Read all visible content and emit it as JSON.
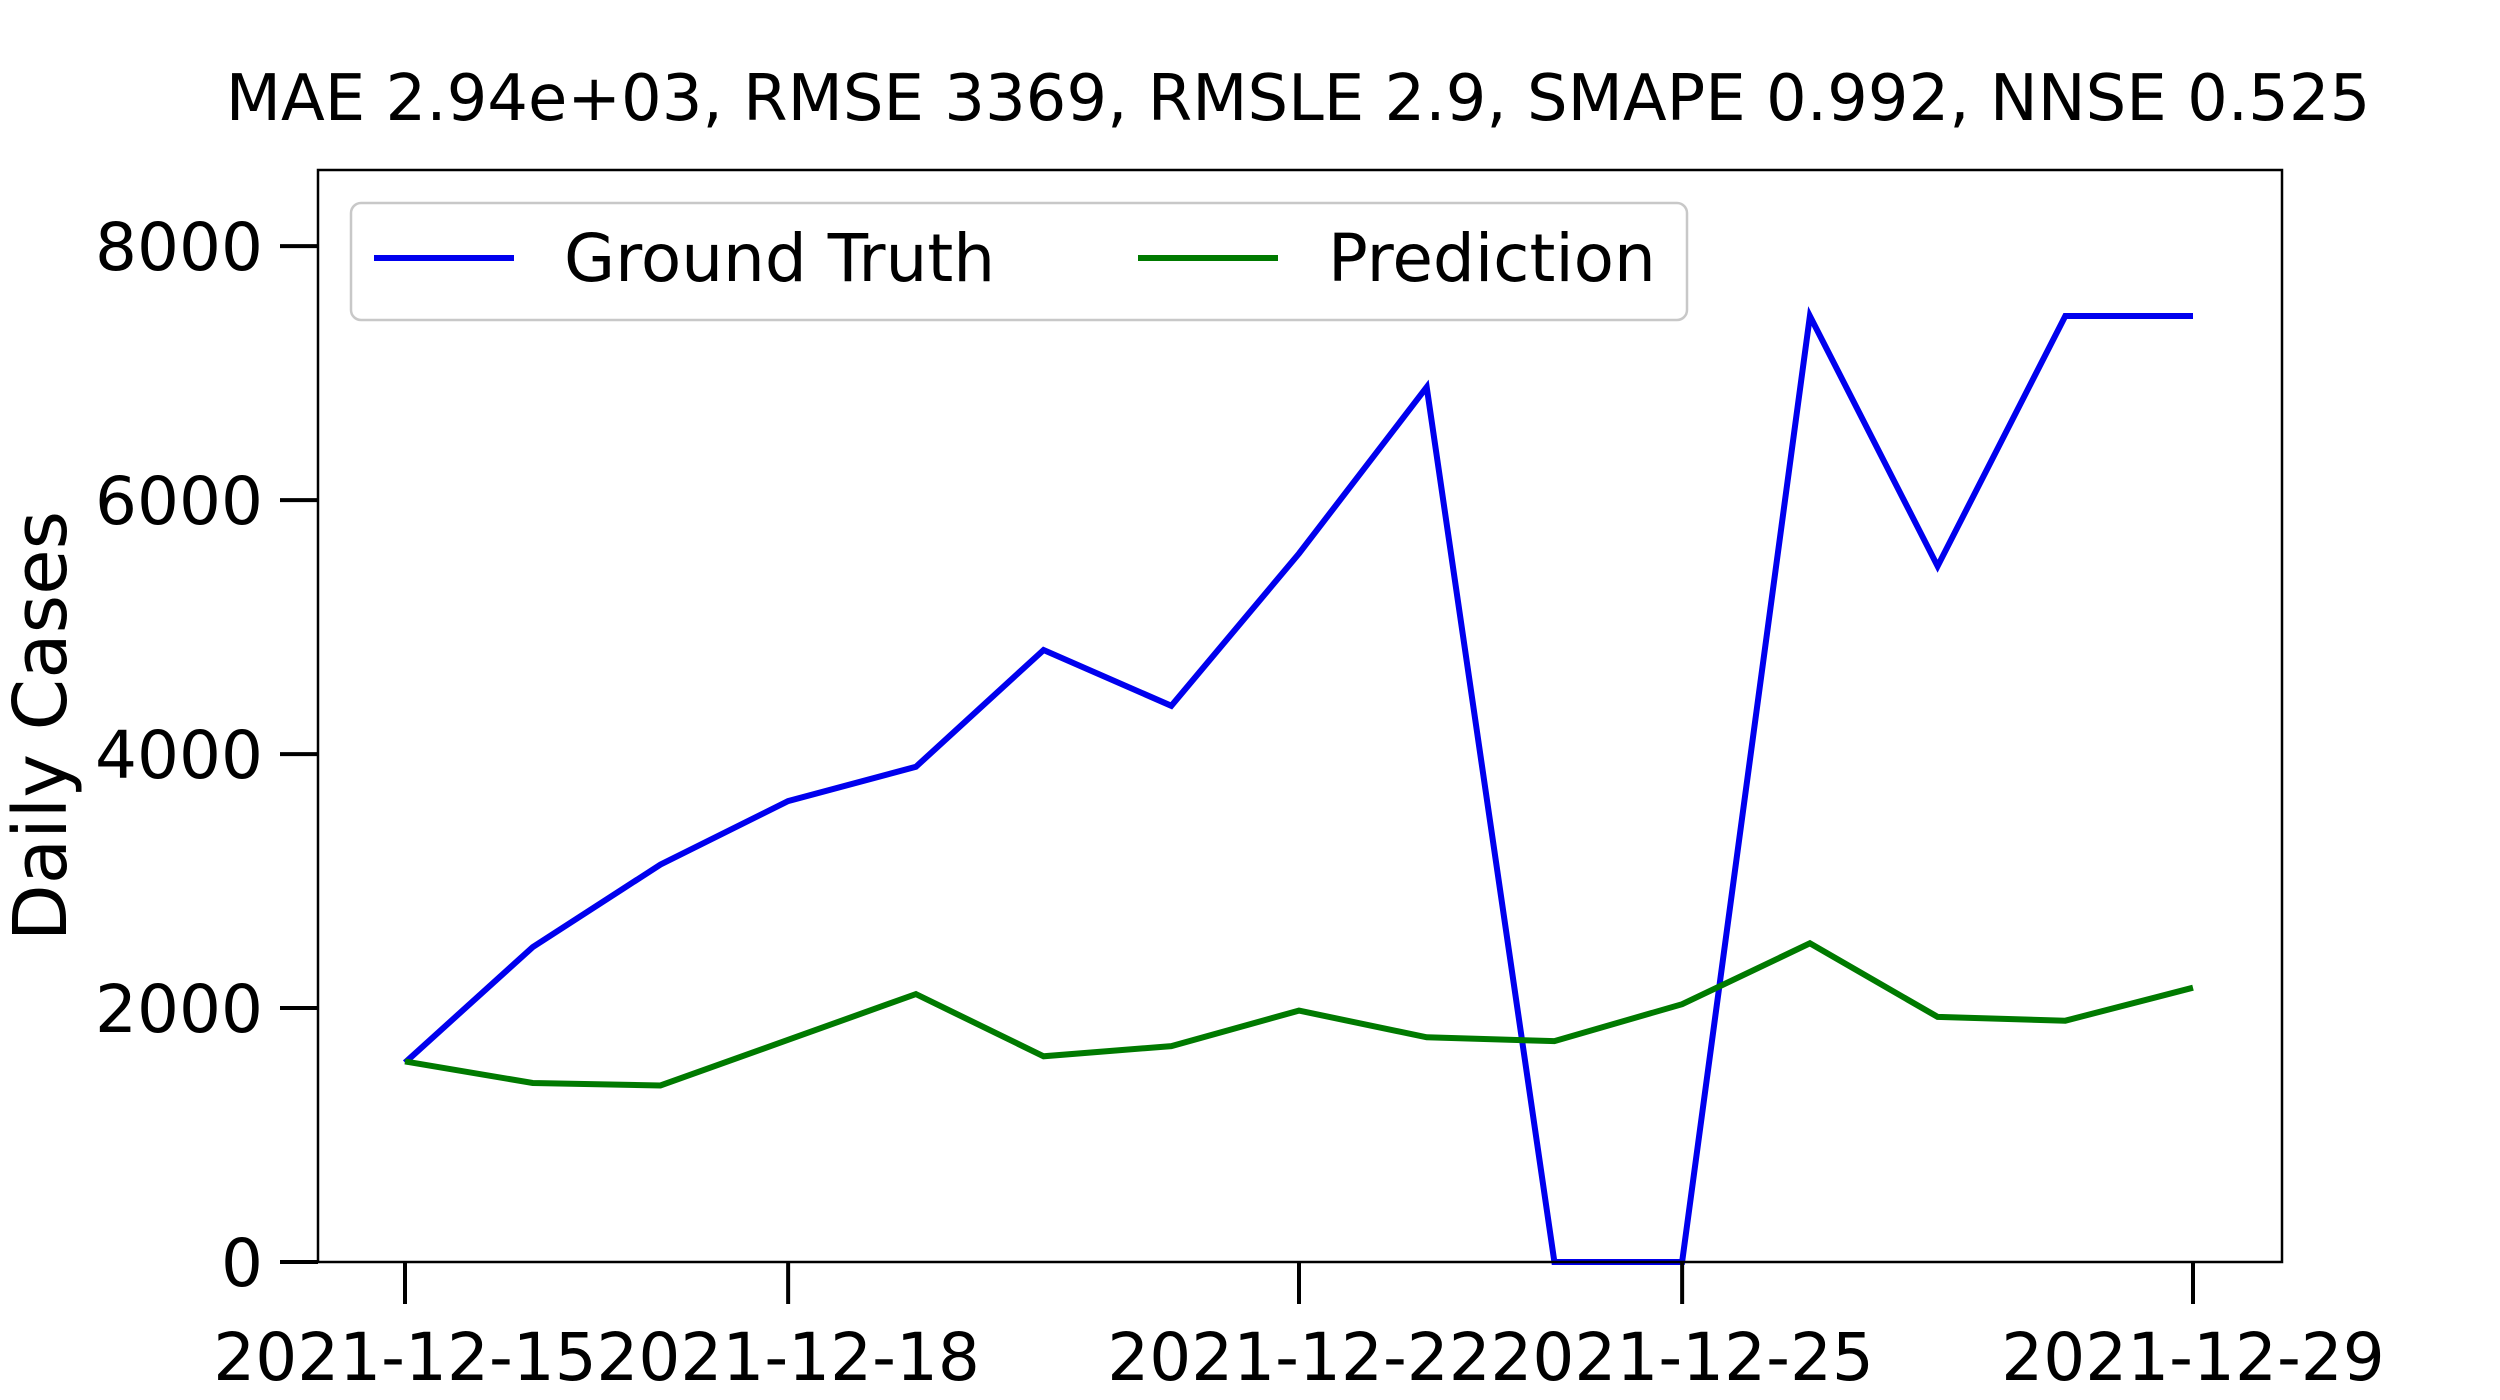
{
  "chart_data": {
    "type": "line",
    "title": "MAE 2.94e+03, RMSE 3369, RMSLE 2.9, SMAPE 0.992, NNSE 0.525",
    "xlabel": "",
    "ylabel": "Daily Cases",
    "ylim": [
      0,
      8600
    ],
    "yticks": [
      0,
      2000,
      4000,
      6000,
      8000
    ],
    "x": [
      "2021-12-15",
      "2021-12-16",
      "2021-12-17",
      "2021-12-18",
      "2021-12-19",
      "2021-12-20",
      "2021-12-21",
      "2021-12-22",
      "2021-12-23",
      "2021-12-24",
      "2021-12-25",
      "2021-12-26",
      "2021-12-27",
      "2021-12-28",
      "2021-12-29"
    ],
    "xticks": [
      "2021-12-15",
      "2021-12-18",
      "2021-12-22",
      "2021-12-25",
      "2021-12-29"
    ],
    "grid": false,
    "legend_position": "top-left",
    "series": [
      {
        "name": "Ground Truth",
        "color": "#0000ee",
        "values": [
          1570,
          2480,
          3130,
          3630,
          3900,
          4820,
          4380,
          5580,
          6890,
          0,
          0,
          7450,
          5480,
          7450,
          7450
        ]
      },
      {
        "name": "Prediction",
        "color": "#007a00",
        "values": [
          1580,
          1410,
          1390,
          1750,
          2110,
          1620,
          1700,
          1980,
          1770,
          1740,
          2030,
          2510,
          1930,
          1900,
          2160
        ]
      }
    ]
  }
}
